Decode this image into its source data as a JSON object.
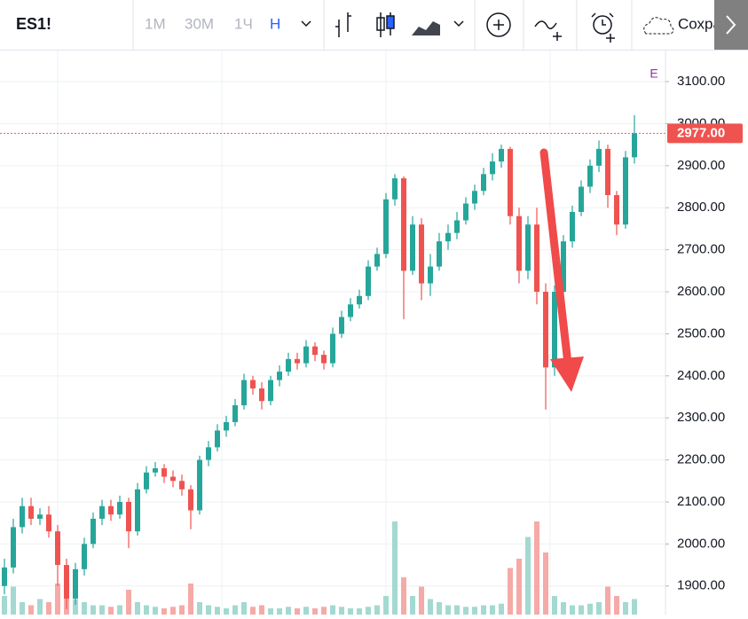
{
  "toolbar": {
    "symbol": "ES1!",
    "intervals": [
      "1М",
      "30М",
      "1Ч",
      "Н"
    ],
    "save": "Сохрани"
  },
  "chart_data": {
    "type": "candlestick",
    "open": [
      1900,
      1944,
      2040,
      2090,
      2060,
      2070,
      2030,
      1950,
      1870,
      1940,
      2000,
      2060,
      2090,
      2070,
      2100,
      2030,
      2130,
      2170,
      2180,
      2160,
      2150,
      2130,
      2080,
      2200,
      2230,
      2270,
      2290,
      2330,
      2390,
      2370,
      2340,
      2390,
      2410,
      2440,
      2430,
      2470,
      2450,
      2430,
      2500,
      2540,
      2570,
      2590,
      2660,
      2690,
      2820,
      2870,
      2650,
      2760,
      2620,
      2660,
      2720,
      2740,
      2770,
      2810,
      2840,
      2880,
      2910,
      2940,
      2780,
      2650,
      2760,
      2600,
      2420,
      2600,
      2720,
      2790,
      2850,
      2900,
      2940,
      2830,
      2760,
      2920
    ],
    "high": [
      1965,
      2060,
      2110,
      2110,
      2085,
      2090,
      2045,
      1965,
      1955,
      2015,
      2075,
      2105,
      2105,
      2115,
      2110,
      2145,
      2185,
      2195,
      2190,
      2175,
      2165,
      2140,
      2210,
      2245,
      2285,
      2305,
      2345,
      2405,
      2400,
      2385,
      2400,
      2425,
      2455,
      2455,
      2485,
      2480,
      2460,
      2515,
      2555,
      2585,
      2605,
      2675,
      2705,
      2835,
      2880,
      2875,
      2780,
      2775,
      2690,
      2740,
      2760,
      2790,
      2825,
      2855,
      2895,
      2930,
      2950,
      2945,
      2800,
      2780,
      2800,
      2620,
      2615,
      2735,
      2805,
      2865,
      2915,
      2960,
      2950,
      2840,
      2935,
      3020
    ],
    "low": [
      1880,
      1930,
      2025,
      2045,
      2045,
      2015,
      1900,
      1845,
      1855,
      1925,
      1990,
      2045,
      2055,
      2060,
      1990,
      2020,
      2120,
      2160,
      2145,
      2135,
      2115,
      2035,
      2070,
      2185,
      2220,
      2255,
      2280,
      2320,
      2355,
      2320,
      2330,
      2375,
      2400,
      2415,
      2420,
      2435,
      2415,
      2420,
      2490,
      2530,
      2560,
      2580,
      2650,
      2680,
      2805,
      2535,
      2640,
      2580,
      2590,
      2650,
      2700,
      2725,
      2760,
      2795,
      2830,
      2865,
      2895,
      2760,
      2620,
      2630,
      2570,
      2320,
      2400,
      2590,
      2705,
      2780,
      2835,
      2885,
      2800,
      2735,
      2750,
      2905
    ],
    "close": [
      1944,
      2040,
      2090,
      2060,
      2070,
      2030,
      1950,
      1870,
      1940,
      2000,
      2060,
      2090,
      2070,
      2100,
      2030,
      2130,
      2170,
      2180,
      2160,
      2150,
      2130,
      2080,
      2200,
      2230,
      2270,
      2290,
      2330,
      2390,
      2370,
      2340,
      2390,
      2410,
      2440,
      2430,
      2470,
      2450,
      2430,
      2500,
      2540,
      2570,
      2590,
      2660,
      2690,
      2820,
      2870,
      2650,
      2760,
      2620,
      2660,
      2720,
      2740,
      2770,
      2810,
      2840,
      2880,
      2910,
      2940,
      2780,
      2650,
      2760,
      2600,
      2420,
      2600,
      2720,
      2790,
      2850,
      2900,
      2940,
      2830,
      2760,
      2920,
      2977
    ],
    "volume": [
      60,
      90,
      40,
      30,
      50,
      40,
      100,
      120,
      50,
      40,
      30,
      30,
      25,
      30,
      80,
      40,
      30,
      25,
      20,
      25,
      30,
      100,
      40,
      30,
      25,
      20,
      30,
      40,
      25,
      30,
      20,
      20,
      25,
      20,
      25,
      20,
      25,
      30,
      25,
      20,
      20,
      25,
      30,
      60,
      300,
      120,
      60,
      90,
      50,
      40,
      30,
      30,
      25,
      25,
      30,
      30,
      35,
      150,
      180,
      250,
      300,
      200,
      60,
      40,
      30,
      30,
      35,
      40,
      90,
      60,
      40,
      50
    ],
    "volume_lim": [
      0,
      400
    ],
    "ylim": [
      1832,
      3174
    ],
    "yticks": [
      {
        "value": 1900,
        "label": "1900.00"
      },
      {
        "value": 2000,
        "label": "2000.00"
      },
      {
        "value": 2100,
        "label": "2100.00"
      },
      {
        "value": 2200,
        "label": "2200.00"
      },
      {
        "value": 2300,
        "label": "2300.00"
      },
      {
        "value": 2400,
        "label": "2400.00"
      },
      {
        "value": 2500,
        "label": "2500.00"
      },
      {
        "value": 2600,
        "label": "2600.00"
      },
      {
        "value": 2700,
        "label": "2700.00"
      },
      {
        "value": 2800,
        "label": "2800.00"
      },
      {
        "value": 2900,
        "label": "2900.00"
      },
      {
        "value": 3000,
        "label": "3000.00"
      },
      {
        "value": 3100,
        "label": "3100.00"
      }
    ],
    "grid": true,
    "last_price": 2977,
    "last_price_label": "2977.00",
    "annotation": "E",
    "up_color": "#26a69a",
    "down_color": "#ef5350",
    "up_volume_color": "#a3d9d1",
    "down_volume_color": "#f5aaa7"
  }
}
